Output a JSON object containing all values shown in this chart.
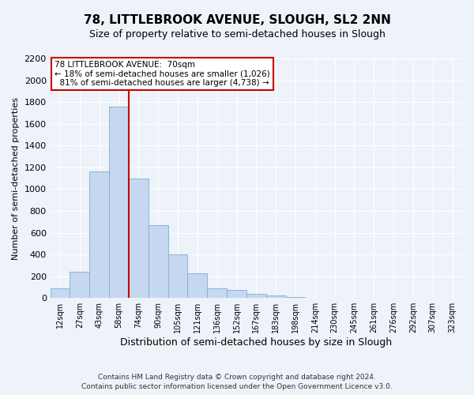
{
  "title": "78, LITTLEBROOK AVENUE, SLOUGH, SL2 2NN",
  "subtitle": "Size of property relative to semi-detached houses in Slough",
  "xlabel": "Distribution of semi-detached houses by size in Slough",
  "ylabel": "Number of semi-detached properties",
  "bin_labels": [
    "12sqm",
    "27sqm",
    "43sqm",
    "58sqm",
    "74sqm",
    "90sqm",
    "105sqm",
    "121sqm",
    "136sqm",
    "152sqm",
    "167sqm",
    "183sqm",
    "198sqm",
    "214sqm",
    "230sqm",
    "245sqm",
    "261sqm",
    "276sqm",
    "292sqm",
    "307sqm",
    "323sqm"
  ],
  "bin_values": [
    90,
    240,
    1160,
    1760,
    1095,
    670,
    400,
    230,
    85,
    75,
    35,
    20,
    10,
    5,
    0,
    0,
    0,
    0,
    0,
    0,
    0
  ],
  "bar_color": "#c5d8ef",
  "bar_edge_color": "#7aadd4",
  "smaller_pct": 18,
  "smaller_count": 1026,
  "larger_pct": 81,
  "larger_count": 4738,
  "vline_bin_index": 3,
  "ylim": [
    0,
    2200
  ],
  "yticks": [
    0,
    200,
    400,
    600,
    800,
    1000,
    1200,
    1400,
    1600,
    1800,
    2000,
    2200
  ],
  "annotation_box_color": "#ffffff",
  "annotation_box_edge_color": "#cc0000",
  "vline_color": "#cc0000",
  "footnote1": "Contains HM Land Registry data © Crown copyright and database right 2024.",
  "footnote2": "Contains public sector information licensed under the Open Government Licence v3.0.",
  "background_color": "#eef2f9",
  "grid_color": "#ffffff",
  "title_fontsize": 11,
  "subtitle_fontsize": 9
}
